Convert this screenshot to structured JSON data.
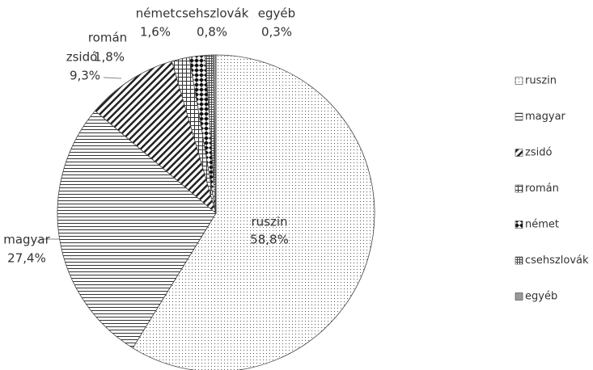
{
  "chart_data": {
    "type": "pie",
    "categories": [
      "ruszin",
      "magyar",
      "zsidó",
      "román",
      "német",
      "csehszlovák",
      "egyéb"
    ],
    "values": [
      58.8,
      27.4,
      9.3,
      1.8,
      1.6,
      0.8,
      0.3
    ],
    "value_labels": [
      "58,8%",
      "27,4%",
      "9,3%",
      "1,8%",
      "1,6%",
      "0,8%",
      "0,3%"
    ],
    "legend": "right"
  }
}
